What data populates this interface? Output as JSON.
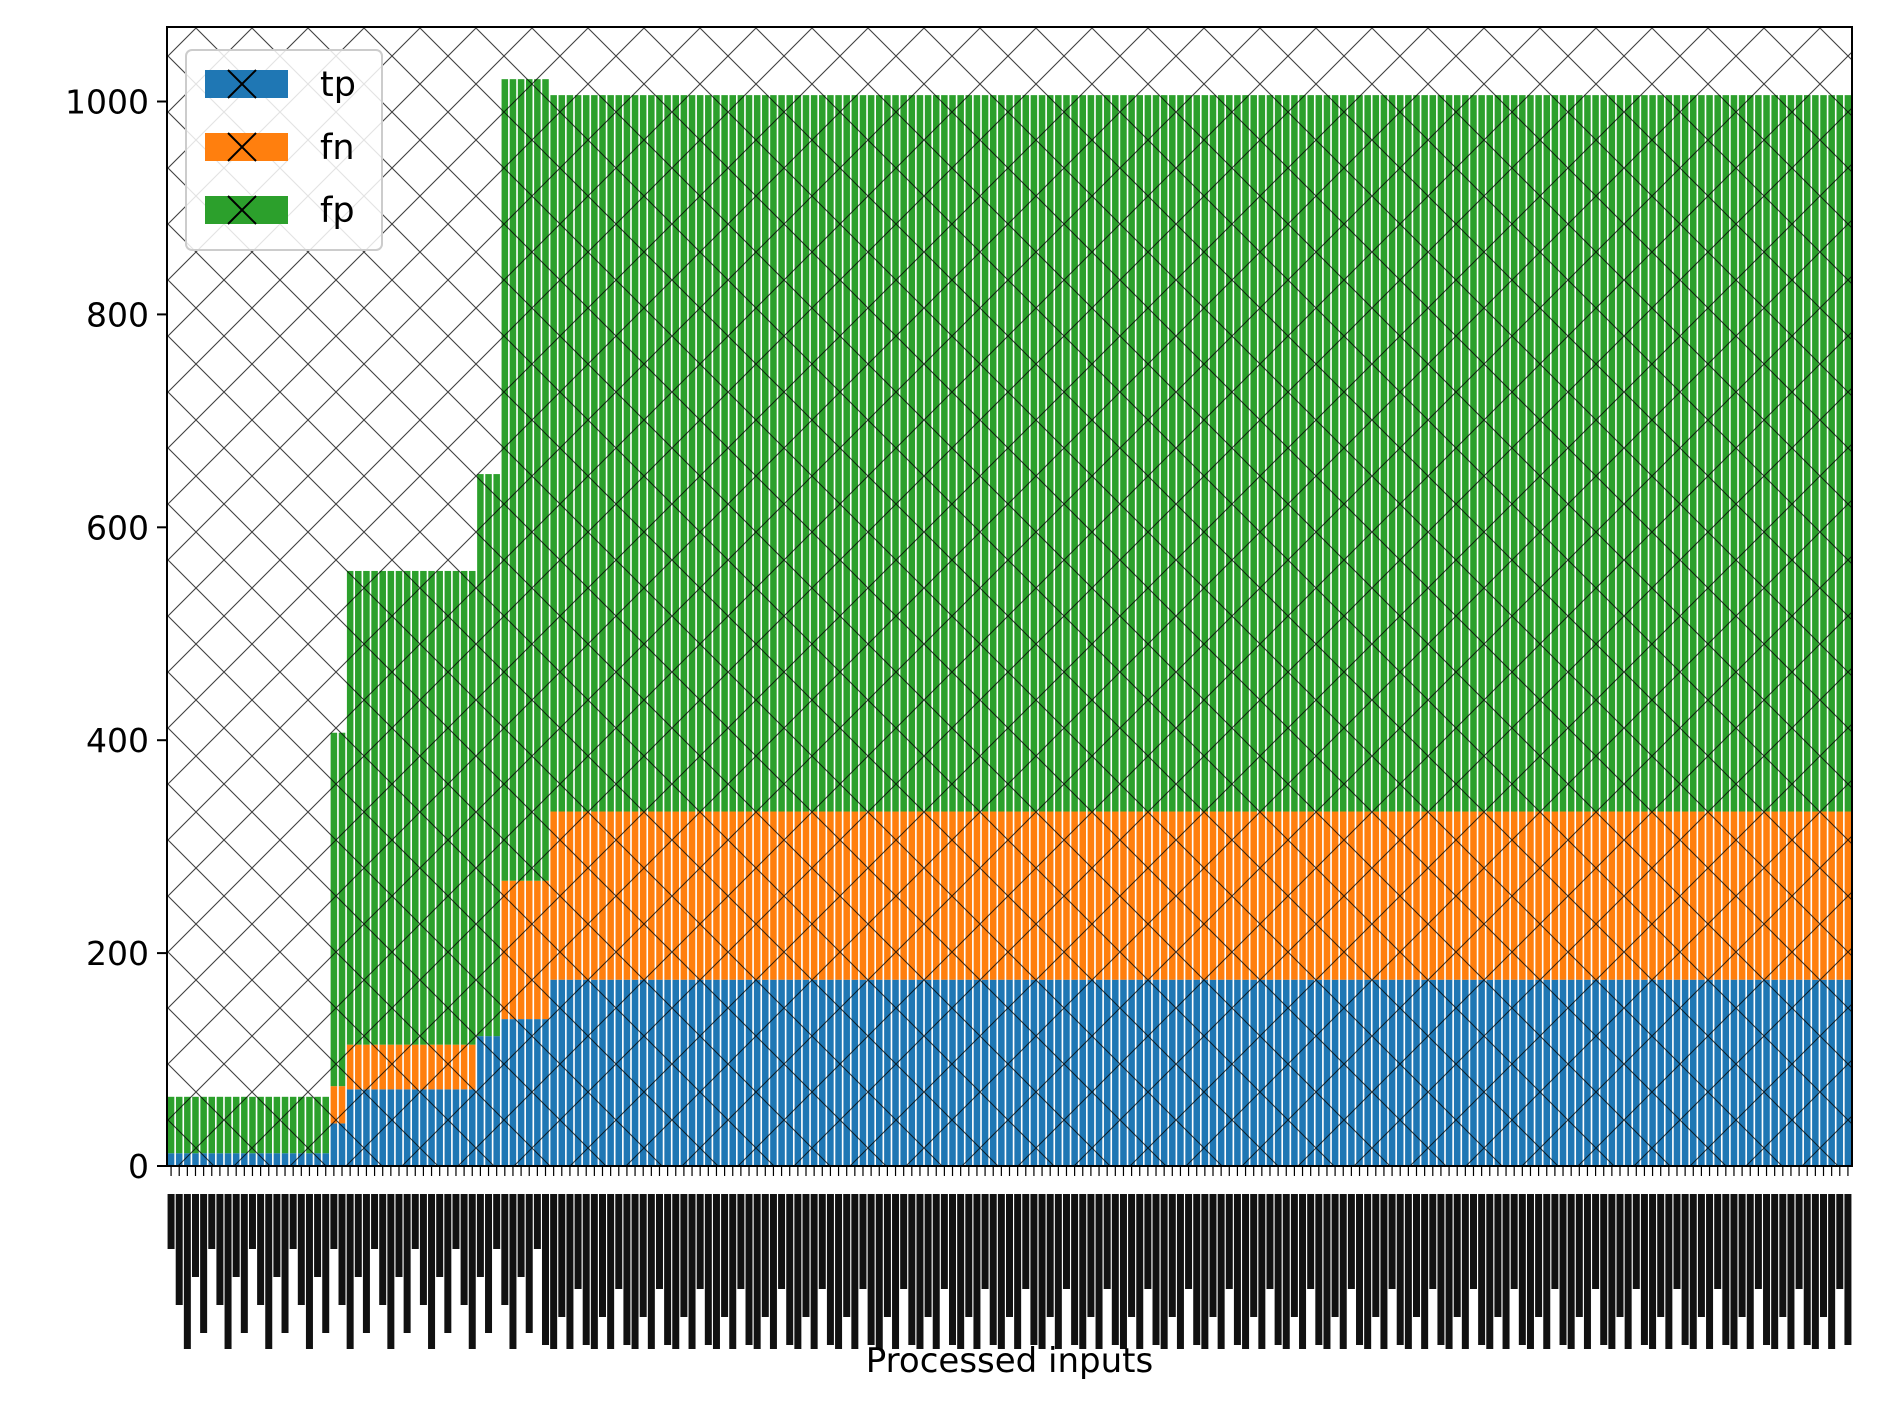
{
  "chart_data": {
    "type": "bar",
    "stacked": true,
    "xlabel": "Processed inputs",
    "ylabel": "",
    "ylim": [
      0,
      1070
    ],
    "yticks": [
      0,
      200,
      400,
      600,
      800,
      1000
    ],
    "xtick_labels": "dense, rotated and illegible",
    "legend_position": "upper-left",
    "colors": {
      "tp": "#1f77b4",
      "fn": "#ff7f0e",
      "fp": "#2ca02c"
    },
    "hatch": "crosshatch",
    "segments": [
      {
        "count": 20,
        "tp": 12,
        "fn": 0,
        "fp": 53
      },
      {
        "count": 2,
        "tp": 40,
        "fn": 35,
        "fp": 332
      },
      {
        "count": 16,
        "tp": 72,
        "fn": 42,
        "fp": 445
      },
      {
        "count": 3,
        "tp": 122,
        "fn": 0,
        "fp": 528
      },
      {
        "count": 6,
        "tp": 138,
        "fn": 130,
        "fp": 753
      },
      {
        "count": 160,
        "tp": 175,
        "fn": 158,
        "fp": 673
      }
    ],
    "series": [
      {
        "name": "tp"
      },
      {
        "name": "fn"
      },
      {
        "name": "fp"
      }
    ]
  }
}
